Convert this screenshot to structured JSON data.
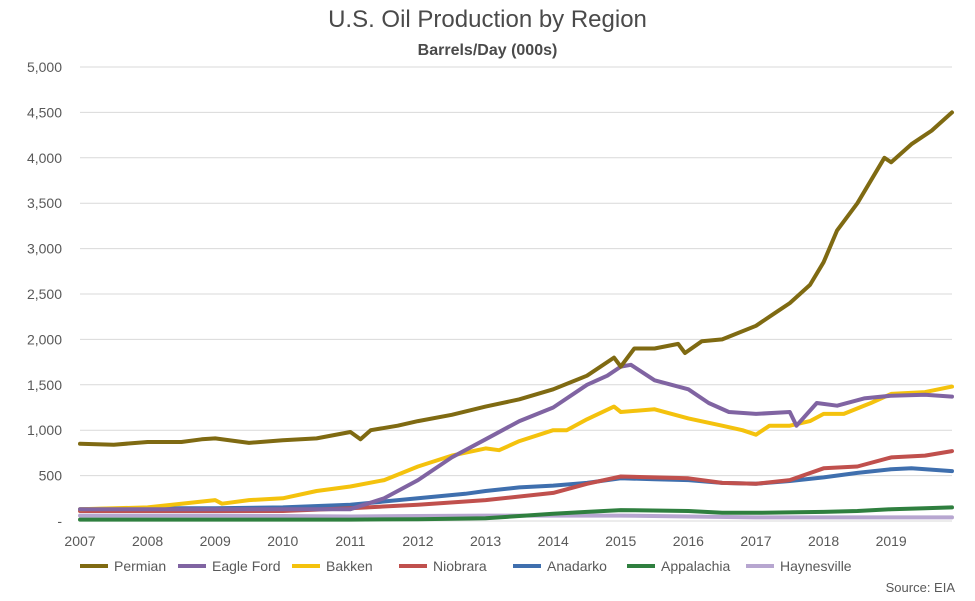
{
  "chart_data": {
    "type": "line",
    "title": "U.S. Oil Production by Region",
    "subtitle": "Barrels/Day (000s)",
    "ylim": [
      0,
      5000
    ],
    "y_ticks": [
      0,
      500,
      1000,
      1500,
      2000,
      2500,
      3000,
      3500,
      4000,
      4500,
      5000
    ],
    "y_tick_labels": [
      "-",
      "500",
      "1,000",
      "1,500",
      "2,000",
      "2,500",
      "3,000",
      "3,500",
      "4,000",
      "4,500",
      "5,000"
    ],
    "x_ticks": [
      2007,
      2008,
      2009,
      2010,
      2011,
      2012,
      2013,
      2014,
      2015,
      2016,
      2017,
      2018,
      2019
    ],
    "xlim": [
      2007,
      2019.9
    ],
    "grid": true,
    "legend_position": "bottom",
    "source": "Source: EIA",
    "series": [
      {
        "name": "Permian",
        "color": "#7f6a12",
        "points": [
          [
            2007,
            850
          ],
          [
            2007.5,
            840
          ],
          [
            2008,
            870
          ],
          [
            2008.5,
            870
          ],
          [
            2008.8,
            900
          ],
          [
            2009,
            910
          ],
          [
            2009.5,
            860
          ],
          [
            2010,
            890
          ],
          [
            2010.5,
            910
          ],
          [
            2011,
            980
          ],
          [
            2011.15,
            900
          ],
          [
            2011.3,
            1000
          ],
          [
            2011.7,
            1050
          ],
          [
            2012,
            1100
          ],
          [
            2012.5,
            1170
          ],
          [
            2013,
            1260
          ],
          [
            2013.5,
            1340
          ],
          [
            2014,
            1450
          ],
          [
            2014.5,
            1600
          ],
          [
            2014.9,
            1800
          ],
          [
            2015,
            1700
          ],
          [
            2015.2,
            1900
          ],
          [
            2015.5,
            1900
          ],
          [
            2015.85,
            1950
          ],
          [
            2015.95,
            1850
          ],
          [
            2016.2,
            1980
          ],
          [
            2016.5,
            2000
          ],
          [
            2017,
            2150
          ],
          [
            2017.3,
            2300
          ],
          [
            2017.5,
            2400
          ],
          [
            2017.8,
            2600
          ],
          [
            2018,
            2850
          ],
          [
            2018.2,
            3200
          ],
          [
            2018.5,
            3500
          ],
          [
            2018.9,
            4000
          ],
          [
            2019,
            3950
          ],
          [
            2019.3,
            4150
          ],
          [
            2019.6,
            4300
          ],
          [
            2019.9,
            4500
          ]
        ]
      },
      {
        "name": "Eagle Ford",
        "color": "#8064a2",
        "points": [
          [
            2007,
            130
          ],
          [
            2009,
            130
          ],
          [
            2010,
            130
          ],
          [
            2011,
            130
          ],
          [
            2011.5,
            250
          ],
          [
            2012,
            450
          ],
          [
            2012.5,
            700
          ],
          [
            2013,
            900
          ],
          [
            2013.5,
            1100
          ],
          [
            2014,
            1250
          ],
          [
            2014.5,
            1500
          ],
          [
            2014.8,
            1600
          ],
          [
            2015,
            1700
          ],
          [
            2015.15,
            1720
          ],
          [
            2015.5,
            1550
          ],
          [
            2016,
            1450
          ],
          [
            2016.3,
            1300
          ],
          [
            2016.6,
            1200
          ],
          [
            2017,
            1180
          ],
          [
            2017.5,
            1200
          ],
          [
            2017.6,
            1050
          ],
          [
            2017.9,
            1300
          ],
          [
            2018.2,
            1270
          ],
          [
            2018.6,
            1350
          ],
          [
            2019,
            1380
          ],
          [
            2019.5,
            1390
          ],
          [
            2019.9,
            1370
          ]
        ]
      },
      {
        "name": "Bakken",
        "color": "#f4c20d",
        "points": [
          [
            2007,
            130
          ],
          [
            2008,
            150
          ],
          [
            2008.5,
            190
          ],
          [
            2009,
            230
          ],
          [
            2009.1,
            190
          ],
          [
            2009.5,
            230
          ],
          [
            2010,
            250
          ],
          [
            2010.5,
            330
          ],
          [
            2011,
            380
          ],
          [
            2011.5,
            450
          ],
          [
            2012,
            600
          ],
          [
            2012.5,
            720
          ],
          [
            2013,
            800
          ],
          [
            2013.2,
            780
          ],
          [
            2013.5,
            880
          ],
          [
            2014,
            1000
          ],
          [
            2014.2,
            1000
          ],
          [
            2014.5,
            1120
          ],
          [
            2014.9,
            1260
          ],
          [
            2015,
            1200
          ],
          [
            2015.5,
            1230
          ],
          [
            2016,
            1130
          ],
          [
            2016.5,
            1050
          ],
          [
            2016.8,
            1000
          ],
          [
            2017,
            950
          ],
          [
            2017.2,
            1050
          ],
          [
            2017.5,
            1050
          ],
          [
            2017.8,
            1100
          ],
          [
            2018,
            1180
          ],
          [
            2018.3,
            1180
          ],
          [
            2018.7,
            1300
          ],
          [
            2019,
            1400
          ],
          [
            2019.5,
            1420
          ],
          [
            2019.9,
            1480
          ]
        ]
      },
      {
        "name": "Niobrara",
        "color": "#c0504d",
        "points": [
          [
            2007,
            110
          ],
          [
            2008,
            110
          ],
          [
            2009,
            110
          ],
          [
            2010,
            110
          ],
          [
            2011,
            140
          ],
          [
            2012,
            180
          ],
          [
            2013,
            230
          ],
          [
            2014,
            310
          ],
          [
            2014.5,
            410
          ],
          [
            2015,
            490
          ],
          [
            2015.5,
            480
          ],
          [
            2016,
            470
          ],
          [
            2016.5,
            420
          ],
          [
            2017,
            410
          ],
          [
            2017.5,
            450
          ],
          [
            2018,
            580
          ],
          [
            2018.5,
            600
          ],
          [
            2019,
            700
          ],
          [
            2019.5,
            720
          ],
          [
            2019.9,
            770
          ]
        ]
      },
      {
        "name": "Anadarko",
        "color": "#3f6fae",
        "points": [
          [
            2007,
            130
          ],
          [
            2008,
            140
          ],
          [
            2009,
            140
          ],
          [
            2010,
            150
          ],
          [
            2011,
            180
          ],
          [
            2012,
            250
          ],
          [
            2012.7,
            300
          ],
          [
            2013,
            330
          ],
          [
            2013.5,
            370
          ],
          [
            2014,
            390
          ],
          [
            2014.5,
            420
          ],
          [
            2015,
            470
          ],
          [
            2015.5,
            460
          ],
          [
            2016,
            450
          ],
          [
            2016.5,
            420
          ],
          [
            2017,
            410
          ],
          [
            2017.5,
            440
          ],
          [
            2018,
            480
          ],
          [
            2018.5,
            530
          ],
          [
            2019,
            570
          ],
          [
            2019.3,
            580
          ],
          [
            2019.9,
            550
          ]
        ]
      },
      {
        "name": "Appalachia",
        "color": "#2f7f3f",
        "points": [
          [
            2007,
            15
          ],
          [
            2008,
            15
          ],
          [
            2009,
            15
          ],
          [
            2010,
            15
          ],
          [
            2011,
            15
          ],
          [
            2012,
            20
          ],
          [
            2013,
            30
          ],
          [
            2014,
            80
          ],
          [
            2014.5,
            100
          ],
          [
            2015,
            120
          ],
          [
            2016,
            110
          ],
          [
            2016.5,
            90
          ],
          [
            2017,
            90
          ],
          [
            2018,
            100
          ],
          [
            2018.5,
            110
          ],
          [
            2019,
            130
          ],
          [
            2019.5,
            140
          ],
          [
            2019.9,
            150
          ]
        ]
      },
      {
        "name": "Haynesville",
        "color": "#b7a6d0",
        "points": [
          [
            2007,
            60
          ],
          [
            2008,
            60
          ],
          [
            2009,
            60
          ],
          [
            2010,
            55
          ],
          [
            2011,
            50
          ],
          [
            2012,
            55
          ],
          [
            2013,
            60
          ],
          [
            2014,
            60
          ],
          [
            2015,
            60
          ],
          [
            2016,
            50
          ],
          [
            2017,
            40
          ],
          [
            2018,
            40
          ],
          [
            2019,
            40
          ],
          [
            2019.9,
            40
          ]
        ]
      }
    ]
  }
}
